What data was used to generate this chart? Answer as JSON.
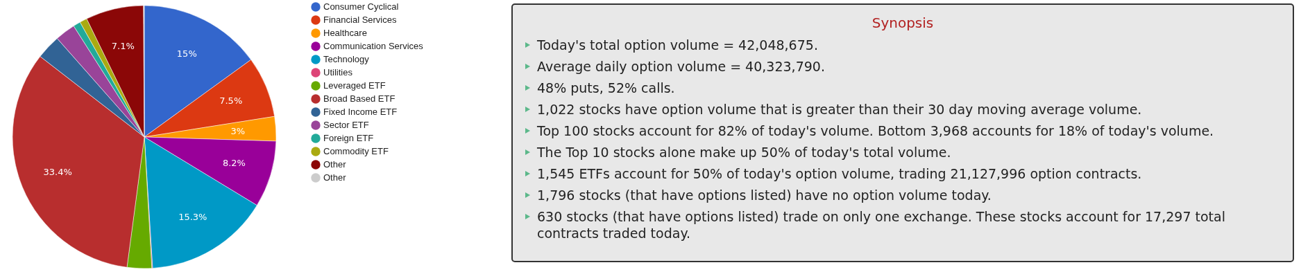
{
  "chart_data": [
    {
      "type": "pie",
      "categories": [
        "Consumer Cyclical",
        "Financial Services",
        "Healthcare",
        "Communication Services",
        "Technology",
        "Utilities",
        "Leveraged ETF",
        "Broad Based ETF",
        "Fixed Income ETF",
        "Sector ETF",
        "Foreign ETF",
        "Commodity ETF",
        "Other",
        "Other"
      ],
      "values": [
        15,
        7.5,
        3,
        8.2,
        15.3,
        0.1,
        3,
        33.4,
        3,
        2.5,
        0.9,
        0.9,
        7.1,
        0.1
      ],
      "colors": [
        "#3366cc",
        "#dc3912",
        "#ff9900",
        "#990099",
        "#0099c6",
        "#dd4477",
        "#66aa00",
        "#b82e2e",
        "#316395",
        "#994499",
        "#22aa99",
        "#aaaa11",
        "#8b0707",
        "#cccccc"
      ],
      "value_labels": [
        "15%",
        "7.5%",
        "3%",
        "8.2%",
        "15.3%",
        null,
        null,
        "33.4%",
        null,
        null,
        null,
        null,
        "7.1%",
        null
      ],
      "legend": "right"
    },
    {
      "type": "other",
      "title": "Synopsis",
      "annotations": [
        "Today's total option volume = 42,048,675.",
        "Average daily option volume = 40,323,790.",
        "48% puts, 52% calls.",
        "1,022 stocks have option volume that is greater than their 30 day moving average volume.",
        "Top 100 stocks account for 82% of today's volume. Bottom 3,968 accounts for 18% of today's volume.",
        "The Top 10 stocks alone make up 50% of today's total volume.",
        "1,545 ETFs account for 50% of today's option volume, trading 21,127,996 option contracts.",
        "1,796 stocks (that have options listed) have no option volume today.",
        "630 stocks (that have options listed) trade on only one exchange. These stocks account for 17,297 total contracts traded today."
      ]
    }
  ]
}
